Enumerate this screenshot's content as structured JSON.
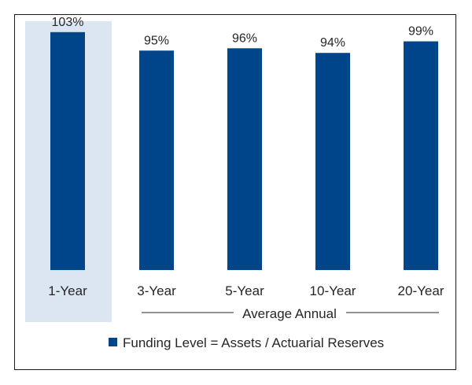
{
  "chart_data": {
    "type": "bar",
    "categories": [
      "1-Year",
      "3-Year",
      "5-Year",
      "10-Year",
      "20-Year"
    ],
    "values": [
      103,
      95,
      96,
      94,
      99
    ],
    "data_labels": [
      "103%",
      "95%",
      "96%",
      "94%",
      "99%"
    ],
    "highlighted_category": "1-Year",
    "group_label": "Average Annual",
    "group_label_spans": [
      "3-Year",
      "5-Year",
      "10-Year",
      "20-Year"
    ],
    "legend": {
      "entries": [
        "Funding Level = Assets / Actuarial Reserves"
      ],
      "position": "bottom"
    },
    "ylim": [
      0,
      106
    ],
    "grid": false,
    "colors": {
      "bar": "#004489",
      "highlight": "#dce6f2",
      "text": "#262626",
      "rule": "#262626"
    }
  }
}
